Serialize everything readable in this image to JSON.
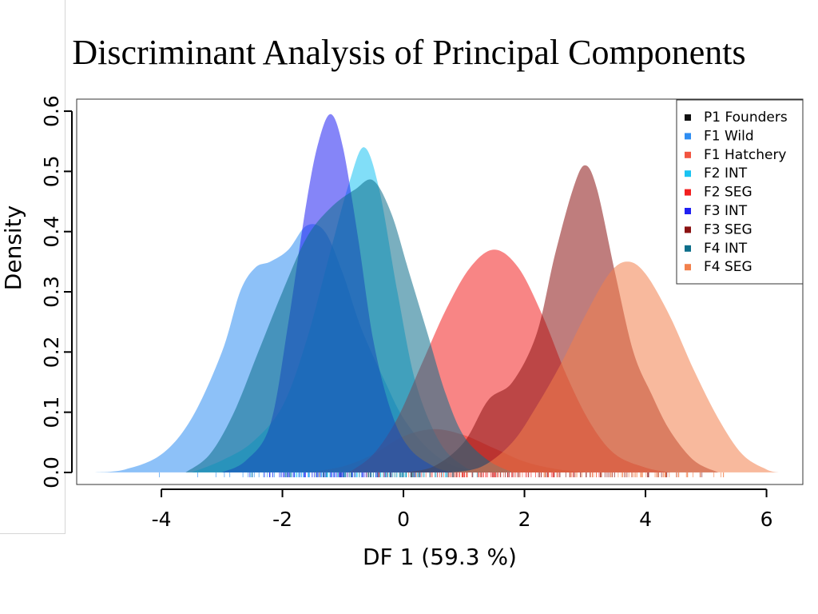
{
  "chart_data": {
    "type": "area",
    "title": "Discriminant Analysis of Principal Components",
    "xlabel": "DF 1 (59.3 %)",
    "ylabel": "Density",
    "xlim": [
      -5.4,
      6.6
    ],
    "ylim": [
      -0.02,
      0.62
    ],
    "xticks": [
      -4,
      -2,
      0,
      2,
      4,
      6
    ],
    "xtick_labels": [
      "-4",
      "-2",
      "0",
      "2",
      "4",
      "6"
    ],
    "yticks": [
      0.0,
      0.1,
      0.2,
      0.3,
      0.4,
      0.5,
      0.6
    ],
    "ytick_labels": [
      "0.0",
      "0.1",
      "0.2",
      "0.3",
      "0.4",
      "0.5",
      "0.6"
    ],
    "grid": false,
    "legend_position": "top-right",
    "series": [
      {
        "name": "P1 Founders",
        "color": "#111111",
        "points": [
          [
            -1.5,
            0
          ],
          [
            -1.5,
            0
          ]
        ]
      },
      {
        "name": "F1 Wild",
        "color": "#2f8ef2",
        "points": [
          [
            -5.1,
            0
          ],
          [
            -4.6,
            0.005
          ],
          [
            -4.0,
            0.03
          ],
          [
            -3.5,
            0.09
          ],
          [
            -3.0,
            0.2
          ],
          [
            -2.7,
            0.3
          ],
          [
            -2.45,
            0.34
          ],
          [
            -2.2,
            0.35
          ],
          [
            -1.9,
            0.37
          ],
          [
            -1.6,
            0.41
          ],
          [
            -1.3,
            0.4
          ],
          [
            -1.0,
            0.33
          ],
          [
            -0.7,
            0.24
          ],
          [
            -0.3,
            0.15
          ],
          [
            0.0,
            0.09
          ],
          [
            0.4,
            0.04
          ],
          [
            0.8,
            0.012
          ],
          [
            1.2,
            0.003
          ],
          [
            1.5,
            0
          ]
        ]
      },
      {
        "name": "F1 Hatchery",
        "color": "#f25540",
        "points": [
          [
            -1.6,
            0
          ],
          [
            -1.0,
            0.01
          ],
          [
            -0.5,
            0.03
          ],
          [
            0.0,
            0.06
          ],
          [
            0.5,
            0.072
          ],
          [
            1.0,
            0.062
          ],
          [
            1.5,
            0.04
          ],
          [
            2.0,
            0.018
          ],
          [
            2.5,
            0.006
          ],
          [
            3.0,
            0
          ]
        ]
      },
      {
        "name": "F2 INT",
        "color": "#19c3f2",
        "points": [
          [
            -3.5,
            0
          ],
          [
            -3.0,
            0.02
          ],
          [
            -2.5,
            0.05
          ],
          [
            -2.0,
            0.11
          ],
          [
            -1.6,
            0.22
          ],
          [
            -1.2,
            0.37
          ],
          [
            -0.9,
            0.48
          ],
          [
            -0.65,
            0.54
          ],
          [
            -0.4,
            0.47
          ],
          [
            -0.1,
            0.3
          ],
          [
            0.2,
            0.15
          ],
          [
            0.6,
            0.05
          ],
          [
            1.0,
            0.01
          ],
          [
            1.3,
            0
          ]
        ]
      },
      {
        "name": "F2 SEG",
        "color": "#f22020",
        "points": [
          [
            -0.9,
            0
          ],
          [
            -0.5,
            0.03
          ],
          [
            -0.1,
            0.09
          ],
          [
            0.3,
            0.18
          ],
          [
            0.7,
            0.27
          ],
          [
            1.1,
            0.34
          ],
          [
            1.5,
            0.37
          ],
          [
            1.9,
            0.34
          ],
          [
            2.3,
            0.26
          ],
          [
            2.7,
            0.16
          ],
          [
            3.1,
            0.08
          ],
          [
            3.5,
            0.03
          ],
          [
            4.0,
            0.008
          ],
          [
            4.4,
            0
          ]
        ]
      },
      {
        "name": "F3 INT",
        "color": "#2020f2",
        "points": [
          [
            -3.0,
            0
          ],
          [
            -2.6,
            0.02
          ],
          [
            -2.2,
            0.08
          ],
          [
            -1.9,
            0.25
          ],
          [
            -1.6,
            0.45
          ],
          [
            -1.4,
            0.55
          ],
          [
            -1.2,
            0.595
          ],
          [
            -1.0,
            0.54
          ],
          [
            -0.75,
            0.39
          ],
          [
            -0.5,
            0.22
          ],
          [
            -0.2,
            0.1
          ],
          [
            0.1,
            0.04
          ],
          [
            0.5,
            0.01
          ],
          [
            0.8,
            0
          ]
        ]
      },
      {
        "name": "F3 SEG",
        "color": "#8a1212",
        "points": [
          [
            0.0,
            0
          ],
          [
            0.5,
            0.01
          ],
          [
            1.0,
            0.05
          ],
          [
            1.4,
            0.12
          ],
          [
            1.8,
            0.15
          ],
          [
            2.2,
            0.23
          ],
          [
            2.5,
            0.36
          ],
          [
            2.8,
            0.47
          ],
          [
            3.0,
            0.51
          ],
          [
            3.2,
            0.47
          ],
          [
            3.5,
            0.33
          ],
          [
            3.8,
            0.2
          ],
          [
            4.1,
            0.13
          ],
          [
            4.4,
            0.07
          ],
          [
            4.8,
            0.02
          ],
          [
            5.2,
            0
          ]
        ]
      },
      {
        "name": "F4 INT",
        "color": "#0d6e8a",
        "points": [
          [
            -3.6,
            0
          ],
          [
            -3.2,
            0.03
          ],
          [
            -2.8,
            0.1
          ],
          [
            -2.4,
            0.2
          ],
          [
            -2.0,
            0.3
          ],
          [
            -1.6,
            0.39
          ],
          [
            -1.2,
            0.44
          ],
          [
            -0.8,
            0.47
          ],
          [
            -0.5,
            0.485
          ],
          [
            -0.2,
            0.43
          ],
          [
            0.1,
            0.33
          ],
          [
            0.4,
            0.23
          ],
          [
            0.7,
            0.13
          ],
          [
            1.0,
            0.06
          ],
          [
            1.4,
            0.02
          ],
          [
            1.8,
            0
          ]
        ]
      },
      {
        "name": "F4 SEG",
        "color": "#f2804c",
        "points": [
          [
            0.8,
            0
          ],
          [
            1.3,
            0.01
          ],
          [
            1.8,
            0.05
          ],
          [
            2.2,
            0.11
          ],
          [
            2.6,
            0.18
          ],
          [
            3.0,
            0.26
          ],
          [
            3.4,
            0.33
          ],
          [
            3.7,
            0.35
          ],
          [
            4.0,
            0.33
          ],
          [
            4.4,
            0.26
          ],
          [
            4.8,
            0.17
          ],
          [
            5.2,
            0.09
          ],
          [
            5.6,
            0.03
          ],
          [
            6.0,
            0.005
          ],
          [
            6.2,
            0
          ]
        ]
      }
    ]
  }
}
